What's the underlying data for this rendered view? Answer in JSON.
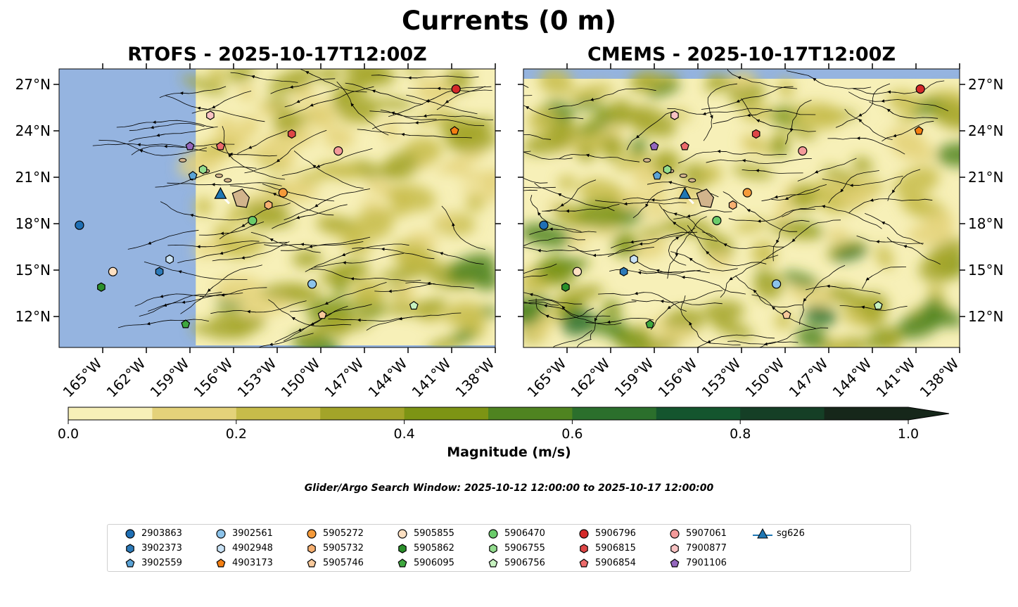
{
  "suptitle": "Currents (0 m)",
  "panels": [
    {
      "title": "RTOFS - 2025-10-17T12:00Z"
    },
    {
      "title": "CMEMS - 2025-10-17T12:00Z"
    }
  ],
  "colorbar": {
    "label": "Magnitude (m/s)",
    "ticks": [
      "0.0",
      "0.2",
      "0.4",
      "0.6",
      "0.8",
      "1.0"
    ],
    "colors": [
      "#f7f0b8",
      "#e4d27a",
      "#c7bc4a",
      "#a3a429",
      "#7d9414",
      "#4f8420",
      "#2b6f2c",
      "#14552e",
      "#153f26",
      "#16271a"
    ],
    "extend": "max"
  },
  "search_window": "Glider/Argo Search Window: 2025-10-12 12:00:00 to 2025-10-17 12:00:00",
  "legend": {
    "items": [
      {
        "label": "2903863",
        "marker": "circle",
        "color": "#1f6fb4"
      },
      {
        "label": "3902373",
        "marker": "hexagon",
        "color": "#2d7ab8"
      },
      {
        "label": "3902559",
        "marker": "pentagon",
        "color": "#5ba3d6"
      },
      {
        "label": "3902561",
        "marker": "circle",
        "color": "#8cc3ea"
      },
      {
        "label": "4902948",
        "marker": "hexagon",
        "color": "#c9e2f5"
      },
      {
        "label": "4903173",
        "marker": "pentagon",
        "color": "#f47f12"
      },
      {
        "label": "5905272",
        "marker": "circle",
        "color": "#f59a3a"
      },
      {
        "label": "5905732",
        "marker": "hexagon",
        "color": "#f7b071"
      },
      {
        "label": "5905746",
        "marker": "pentagon",
        "color": "#f8c99b"
      },
      {
        "label": "5905855",
        "marker": "circle",
        "color": "#fde0c2"
      },
      {
        "label": "5905862",
        "marker": "hexagon",
        "color": "#2a8f2a"
      },
      {
        "label": "5906095",
        "marker": "pentagon",
        "color": "#3fa83f"
      },
      {
        "label": "5906470",
        "marker": "circle",
        "color": "#6acb6a"
      },
      {
        "label": "5906755",
        "marker": "hexagon",
        "color": "#93dc8e"
      },
      {
        "label": "5906756",
        "marker": "pentagon",
        "color": "#c7f2c0"
      },
      {
        "label": "5906796",
        "marker": "circle",
        "color": "#d42a2a"
      },
      {
        "label": "5906815",
        "marker": "hexagon",
        "color": "#de4646"
      },
      {
        "label": "5906854",
        "marker": "pentagon",
        "color": "#ec6b6b"
      },
      {
        "label": "5907061",
        "marker": "circle",
        "color": "#f49a9a"
      },
      {
        "label": "7900877",
        "marker": "hexagon",
        "color": "#f9c3c3"
      },
      {
        "label": "7901106",
        "marker": "pentagon",
        "color": "#9467bd"
      },
      {
        "label": "sg626",
        "marker": "triangle-line",
        "color": "#1f77b4"
      }
    ]
  },
  "chart_data": {
    "type": "map",
    "title": "Currents (0 m)",
    "variable": "surface current magnitude (m/s) with streamlines",
    "xlim": [
      -168,
      -138
    ],
    "ylim": [
      10,
      28
    ],
    "x_ticks": [
      -165,
      -162,
      -159,
      -156,
      -153,
      -150,
      -147,
      -144,
      -141,
      -138
    ],
    "x_tick_labels": [
      "165°W",
      "162°W",
      "159°W",
      "156°W",
      "153°W",
      "150°W",
      "147°W",
      "144°W",
      "141°W",
      "138°W"
    ],
    "y_ticks": [
      12,
      15,
      18,
      21,
      24,
      27
    ],
    "y_tick_labels": [
      "12°N",
      "15°N",
      "18°N",
      "21°N",
      "24°N",
      "27°N"
    ],
    "rtofs_data_west_edge_lon": -158.6,
    "islands": [
      {
        "name": "Hawaii",
        "lon": -155.5,
        "lat": 19.6
      },
      {
        "name": "Maui",
        "lon": -156.4,
        "lat": 20.8
      },
      {
        "name": "Molokai",
        "lon": -157.0,
        "lat": 21.1
      },
      {
        "name": "Oahu",
        "lon": -157.9,
        "lat": 21.4
      },
      {
        "name": "Kauai",
        "lon": -159.5,
        "lat": 22.1
      }
    ],
    "glider_track": {
      "name": "sg626",
      "lon": [
        -156.9,
        -156.3
      ],
      "lat": [
        19.9,
        19.3
      ]
    },
    "floats": [
      {
        "id": "2903863",
        "lon": -166.6,
        "lat": 17.9
      },
      {
        "id": "3902373",
        "lon": -161.1,
        "lat": 14.9
      },
      {
        "id": "3902559",
        "lon": -158.8,
        "lat": 21.1
      },
      {
        "id": "3902561",
        "lon": -150.6,
        "lat": 14.1
      },
      {
        "id": "4902948",
        "lon": -160.4,
        "lat": 15.7
      },
      {
        "id": "4903173",
        "lon": -140.8,
        "lat": 24.0
      },
      {
        "id": "5905272",
        "lon": -152.6,
        "lat": 20.0
      },
      {
        "id": "5905732",
        "lon": -153.6,
        "lat": 19.2
      },
      {
        "id": "5905746",
        "lon": -149.9,
        "lat": 12.1
      },
      {
        "id": "5905855",
        "lon": -164.3,
        "lat": 14.9
      },
      {
        "id": "5905862",
        "lon": -165.1,
        "lat": 13.9
      },
      {
        "id": "5906095",
        "lon": -159.3,
        "lat": 11.5
      },
      {
        "id": "5906470",
        "lon": -154.7,
        "lat": 18.2
      },
      {
        "id": "5906755",
        "lon": -158.1,
        "lat": 21.5
      },
      {
        "id": "5906756",
        "lon": -143.6,
        "lat": 12.7
      },
      {
        "id": "5906796",
        "lon": -140.7,
        "lat": 26.7
      },
      {
        "id": "5906815",
        "lon": -152.0,
        "lat": 23.8
      },
      {
        "id": "5906854",
        "lon": -156.9,
        "lat": 23.0
      },
      {
        "id": "5907061",
        "lon": -148.8,
        "lat": 22.7
      },
      {
        "id": "7900877",
        "lon": -157.6,
        "lat": 25.0
      },
      {
        "id": "7901106",
        "lon": -159.0,
        "lat": 23.0
      }
    ]
  }
}
